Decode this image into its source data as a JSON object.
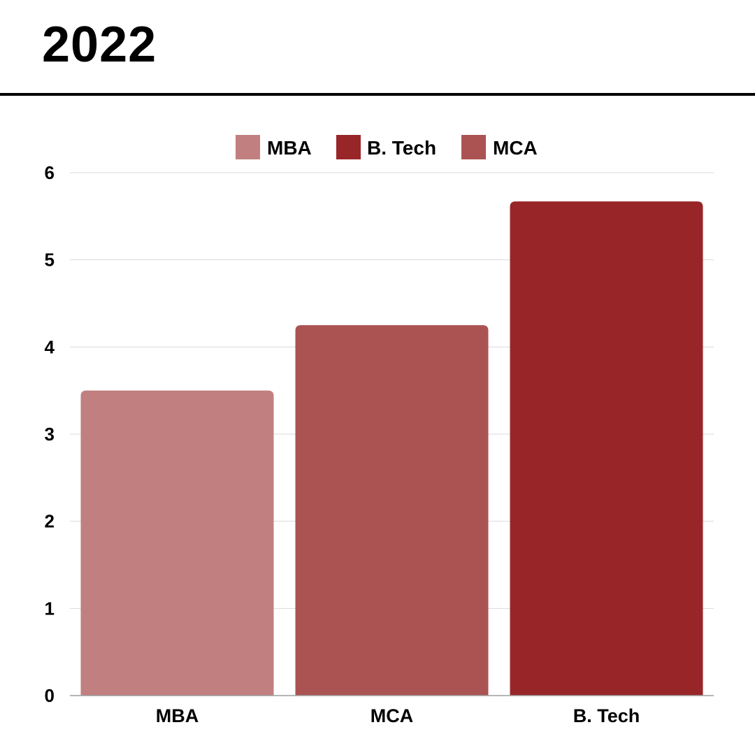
{
  "title": "2022",
  "chart_data": {
    "type": "bar",
    "categories": [
      "MBA",
      "MCA",
      "B. Tech"
    ],
    "values": [
      3.5,
      4.25,
      5.67
    ],
    "colors": [
      "#c17f7f",
      "#ab5353",
      "#982628"
    ],
    "legend": {
      "placement": "top-center",
      "entries": [
        {
          "label": "MBA",
          "color": "#c17f7f"
        },
        {
          "label": "B. Tech",
          "color": "#982628"
        },
        {
          "label": "MCA",
          "color": "#ab5353"
        }
      ]
    },
    "ylim": [
      0,
      6
    ],
    "yticks": [
      0,
      1,
      2,
      3,
      4,
      5,
      6
    ],
    "grid": true
  }
}
